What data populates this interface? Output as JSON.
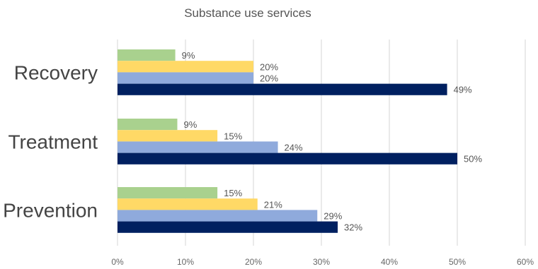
{
  "chart_data": {
    "type": "bar",
    "orientation": "horizontal",
    "title": "Substance use services",
    "xlabel": "",
    "ylabel": "",
    "categories": [
      "Recovery",
      "Treatment",
      "Prevention"
    ],
    "series": [
      {
        "color": "#a9d18e",
        "values": [
          9,
          9,
          15
        ]
      },
      {
        "color": "#ffd966",
        "values": [
          20,
          15,
          21
        ]
      },
      {
        "color": "#8faadc",
        "values": [
          20,
          24,
          29
        ]
      },
      {
        "color": "#002060",
        "values": [
          49,
          50,
          32
        ]
      }
    ],
    "data_labels": [
      [
        "9%",
        "20%",
        "20%",
        "49%"
      ],
      [
        "9%",
        "15%",
        "24%",
        "50%"
      ],
      [
        "15%",
        "21%",
        "29%",
        "32%"
      ]
    ],
    "precise_values": [
      [
        8.5,
        20,
        20,
        48.5
      ],
      [
        8.8,
        14.7,
        23.6,
        50
      ],
      [
        14.7,
        20.6,
        29.4,
        32.4
      ]
    ],
    "xlim": [
      0,
      60
    ],
    "x_ticks": [
      "0%",
      "10%",
      "20%",
      "30%",
      "40%",
      "50%",
      "60%"
    ],
    "grid": true,
    "legend": "none"
  }
}
